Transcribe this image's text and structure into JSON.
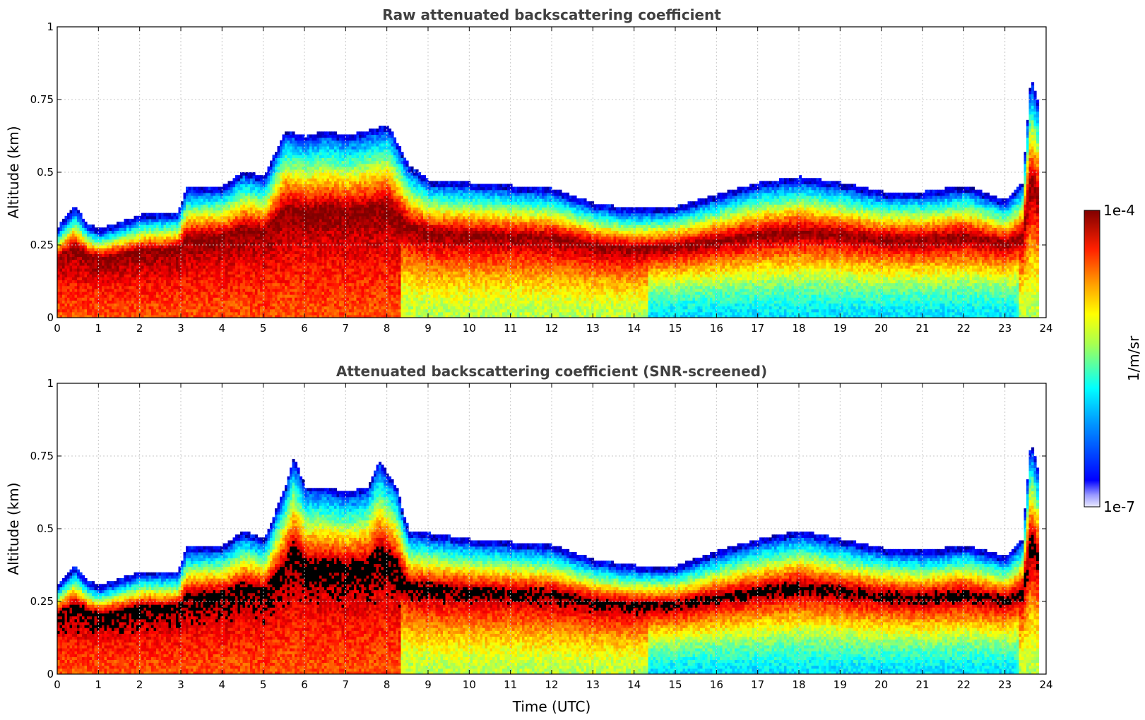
{
  "chart_data": [
    {
      "type": "heatmap",
      "title": "Raw attenuated backscattering coefficient",
      "xlabel": "",
      "ylabel": "Altitude (km)",
      "xlim": [
        0,
        24
      ],
      "ylim": [
        0,
        1
      ],
      "xticks": [
        0,
        1,
        2,
        3,
        4,
        5,
        6,
        7,
        8,
        9,
        10,
        11,
        12,
        13,
        14,
        15,
        16,
        17,
        18,
        19,
        20,
        21,
        22,
        23,
        24
      ],
      "yticks": [
        0,
        0.25,
        0.5,
        0.75,
        1
      ],
      "ytick_labels": [
        "0",
        "0.25",
        "0.5",
        "0.75",
        "1"
      ],
      "grid": true,
      "screened": false,
      "layer_top_km": {
        "x": [
          0,
          0.4,
          0.7,
          1,
          2,
          2.9,
          3.1,
          4,
          4.5,
          5,
          5.5,
          6,
          6.5,
          7,
          7.5,
          8,
          8.5,
          9,
          10,
          11,
          12,
          13,
          14,
          15,
          16,
          17,
          18,
          19,
          20,
          21,
          22,
          23,
          23.4,
          23.6,
          23.8
        ],
        "y": [
          0.29,
          0.36,
          0.3,
          0.28,
          0.33,
          0.34,
          0.42,
          0.43,
          0.48,
          0.46,
          0.62,
          0.6,
          0.62,
          0.6,
          0.62,
          0.64,
          0.5,
          0.45,
          0.44,
          0.43,
          0.42,
          0.37,
          0.35,
          0.36,
          0.4,
          0.44,
          0.46,
          0.44,
          0.41,
          0.41,
          0.43,
          0.38,
          0.44,
          0.8,
          0.7
        ]
      }
    },
    {
      "type": "heatmap",
      "title": "Attenuated backscattering coefficient (SNR-screened)",
      "xlabel": "Time (UTC)",
      "ylabel": "Altitude (km)",
      "xlim": [
        0,
        24
      ],
      "ylim": [
        0,
        1
      ],
      "xticks": [
        0,
        1,
        2,
        3,
        4,
        5,
        6,
        7,
        8,
        9,
        10,
        11,
        12,
        13,
        14,
        15,
        16,
        17,
        18,
        19,
        20,
        21,
        22,
        23,
        24
      ],
      "yticks": [
        0,
        0.25,
        0.5,
        0.75,
        1
      ],
      "ytick_labels": [
        "0",
        "0.25",
        "0.5",
        "0.75",
        "1"
      ],
      "grid": true,
      "screened": true,
      "layer_top_km": {
        "x": [
          0,
          0.4,
          0.7,
          1,
          2,
          2.9,
          3.1,
          4,
          4.5,
          5,
          5.5,
          5.7,
          6,
          6.5,
          7,
          7.5,
          7.8,
          8.2,
          8.5,
          9,
          10,
          11,
          12,
          13,
          14,
          15,
          16,
          17,
          18,
          19,
          20,
          21,
          22,
          23,
          23.4,
          23.6,
          23.8
        ],
        "y": [
          0.29,
          0.35,
          0.3,
          0.28,
          0.33,
          0.33,
          0.41,
          0.42,
          0.47,
          0.44,
          0.62,
          0.72,
          0.62,
          0.62,
          0.6,
          0.62,
          0.71,
          0.62,
          0.47,
          0.46,
          0.44,
          0.43,
          0.42,
          0.37,
          0.35,
          0.35,
          0.4,
          0.44,
          0.47,
          0.44,
          0.41,
          0.4,
          0.42,
          0.38,
          0.44,
          0.78,
          0.66
        ]
      }
    }
  ],
  "colorbar": {
    "label": "1/m/sr",
    "max_label": "1e-4",
    "min_label": "1e-7",
    "log_min": -7,
    "log_max": -4,
    "colormap": "jet",
    "saturated_color": "#000000",
    "low_color": "#e6e6ff"
  }
}
